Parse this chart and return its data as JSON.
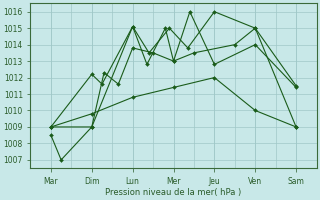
{
  "background_color": "#c8e8e8",
  "grid_color": "#a0c8c8",
  "line_color": "#1a5c1a",
  "xlabel": "Pression niveau de la mer( hPa )",
  "x_labels": [
    "Mar",
    "Dim",
    "Lun",
    "Mer",
    "Jeu",
    "Ven",
    "Sam"
  ],
  "ylim": [
    1006.5,
    1016.5
  ],
  "yticks": [
    1007,
    1008,
    1009,
    1010,
    1011,
    1012,
    1013,
    1014,
    1015,
    1016
  ],
  "line1_x": [
    0,
    0.25,
    1.0,
    2.0,
    2.4,
    2.9,
    3.35,
    4.0,
    5.0,
    6.0
  ],
  "line1_y": [
    1008.5,
    1007.0,
    1009.0,
    1015.1,
    1013.5,
    1015.0,
    1013.8,
    1016.0,
    1015.0,
    1011.5
  ],
  "line2_x": [
    0,
    1.0,
    1.25,
    2.0,
    2.35,
    2.8,
    3.0,
    3.4,
    4.0,
    5.0,
    6.0
  ],
  "line2_y": [
    1009.0,
    1012.2,
    1011.6,
    1015.1,
    1012.8,
    1015.0,
    1013.0,
    1016.0,
    1012.8,
    1014.0,
    1011.4
  ],
  "line3_x": [
    0,
    1.0,
    1.3,
    1.65,
    2.0,
    2.5,
    3.0,
    3.5,
    4.5,
    5.0,
    6.0
  ],
  "line3_y": [
    1009.0,
    1009.0,
    1012.3,
    1011.6,
    1013.8,
    1013.5,
    1013.0,
    1013.5,
    1014.0,
    1015.0,
    1009.0
  ],
  "line4_x": [
    0,
    1.0,
    2.0,
    3.0,
    4.0,
    5.0,
    6.0
  ],
  "line4_y": [
    1009.0,
    1009.8,
    1010.8,
    1011.4,
    1012.0,
    1010.0,
    1009.0
  ]
}
